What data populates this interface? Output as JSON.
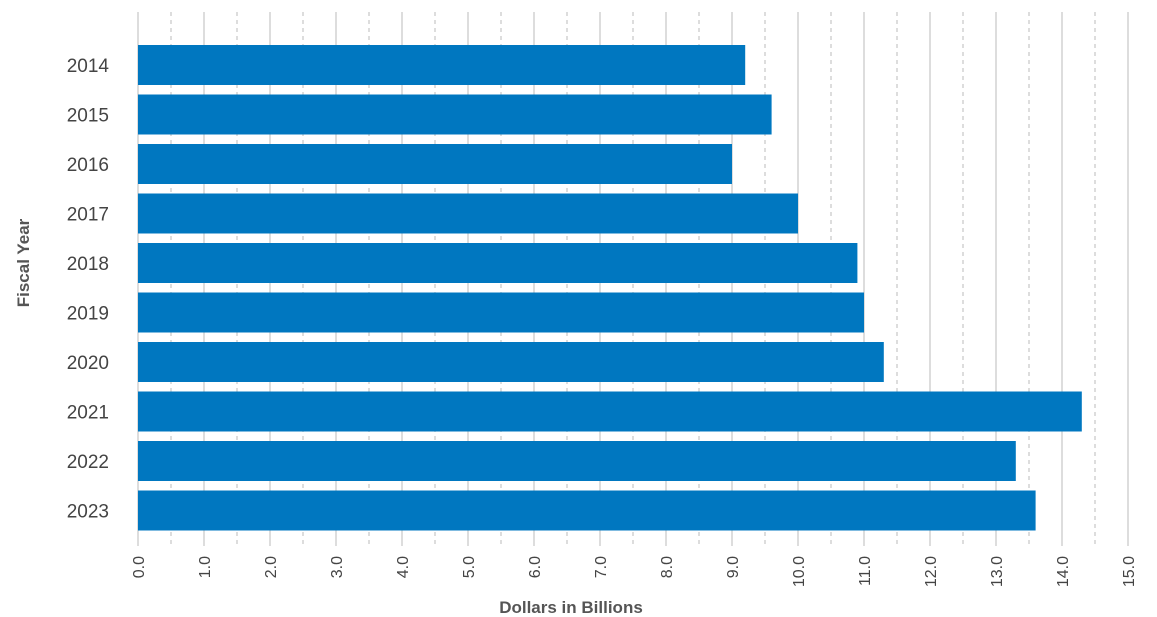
{
  "chart_data": {
    "type": "bar",
    "orientation": "horizontal",
    "title": "",
    "xlabel": "Dollars in Billions",
    "ylabel": "Fiscal Year",
    "categories": [
      "2014",
      "2015",
      "2016",
      "2017",
      "2018",
      "2019",
      "2020",
      "2021",
      "2022",
      "2023"
    ],
    "values": [
      9.2,
      9.6,
      9.0,
      10.0,
      10.9,
      11.0,
      11.3,
      14.3,
      13.3,
      13.6
    ],
    "xlim": [
      0,
      15
    ],
    "xticks": [
      "0.0",
      "1.0",
      "2.0",
      "3.0",
      "4.0",
      "5.0",
      "6.0",
      "7.0",
      "8.0",
      "9.0",
      "10.0",
      "11.0",
      "12.0",
      "13.0",
      "14.0",
      "15.0"
    ],
    "grid": true,
    "bar_color": "#0077c0",
    "grid_color": "#bbbbbb"
  }
}
